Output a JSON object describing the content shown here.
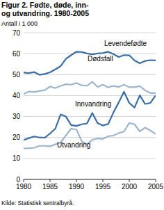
{
  "chart_data": {
    "type": "line",
    "title": "Figur 2. Fødte, døde, inn- og utvandring. 1980-2005",
    "y_label": "Antall i 1 000",
    "source": "Kilde: Statistisk sentralbyrå.",
    "x": [
      1980,
      1981,
      1982,
      1983,
      1984,
      1985,
      1986,
      1987,
      1988,
      1989,
      1990,
      1991,
      1992,
      1993,
      1994,
      1995,
      1996,
      1997,
      1998,
      1999,
      2000,
      2001,
      2002,
      2003,
      2004,
      2005
    ],
    "series": [
      {
        "name": "Levendefødte",
        "color": "#3a6ea5",
        "values": [
          51.0,
          50.7,
          51.2,
          49.9,
          50.3,
          51.1,
          52.5,
          54.0,
          57.5,
          59.3,
          60.9,
          60.8,
          60.1,
          59.7,
          60.1,
          60.3,
          60.9,
          59.8,
          58.4,
          59.3,
          59.2,
          56.7,
          55.4,
          56.5,
          56.9,
          56.8
        ]
      },
      {
        "name": "Dødsfall",
        "color": "#9db5cd",
        "values": [
          40.8,
          41.9,
          41.7,
          42.2,
          42.6,
          44.3,
          43.6,
          44.6,
          45.4,
          45.2,
          46.0,
          44.9,
          44.7,
          46.6,
          44.1,
          45.2,
          43.9,
          44.6,
          44.1,
          45.2,
          44.0,
          44.0,
          44.5,
          42.5,
          41.2,
          41.2
        ]
      },
      {
        "name": "Innvandring",
        "color": "#3a6ea5",
        "values": [
          18.8,
          19.7,
          20.5,
          20.0,
          19.9,
          21.9,
          24.2,
          31.0,
          30.0,
          25.9,
          25.5,
          26.3,
          26.7,
          31.7,
          26.9,
          25.7,
          26.4,
          31.9,
          36.7,
          41.8,
          36.5,
          34.3,
          40.1,
          36.0,
          36.5,
          40.1
        ]
      },
      {
        "name": "Utvandring",
        "color": "#9db5cd",
        "values": [
          14.8,
          14.9,
          15.1,
          16.0,
          16.0,
          15.8,
          16.7,
          17.6,
          21.0,
          24.2,
          23.8,
          18.2,
          16.8,
          18.9,
          19.5,
          19.3,
          20.6,
          20.9,
          22.1,
          22.8,
          26.9,
          26.3,
          22.9,
          24.7,
          23.3,
          21.7
        ]
      }
    ],
    "xlim": [
      1980,
      2005
    ],
    "xticks": [
      1980,
      1985,
      1990,
      1995,
      2000,
      2005
    ],
    "ylim": [
      0,
      70
    ],
    "yticks": [
      0,
      10,
      20,
      30,
      40,
      50,
      60,
      70
    ],
    "grid": true
  }
}
